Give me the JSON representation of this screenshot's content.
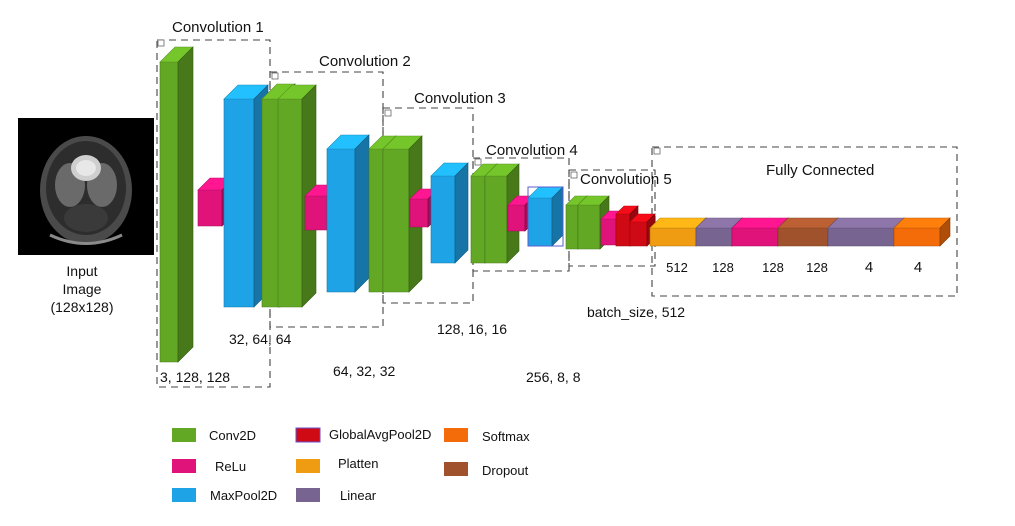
{
  "input": {
    "label_lines": [
      "Input",
      "Image",
      "(128x128)"
    ]
  },
  "groups": [
    {
      "id": "conv1",
      "title": "Convolution 1",
      "dims": "3, 128, 128"
    },
    {
      "id": "conv2",
      "title": "Convolution 2",
      "dims": "32, 64, 64"
    },
    {
      "id": "conv3",
      "title": "Convolution 3",
      "dims": "64, 32, 32"
    },
    {
      "id": "conv4",
      "title": "Convolution 4",
      "dims": "128, 16, 16"
    },
    {
      "id": "conv5",
      "title": "Convolution 5",
      "dims": "256, 8, 8"
    },
    {
      "id": "fc",
      "title": "Fully Connected",
      "dims": "batch_size, 512"
    }
  ],
  "fc_labels": [
    "512",
    "128",
    "128",
    "128",
    "4",
    "4"
  ],
  "colors": {
    "conv2d": "#63a824",
    "relu": "#e0137a",
    "maxpool2d": "#1ea3e6",
    "globalavgpool2d": "#d00a14",
    "flatten": "#ef9c12",
    "linear": "#786490",
    "softmax": "#f46c0a",
    "dropout": "#a0522d"
  },
  "legend": [
    {
      "key": "conv2d",
      "label": "Conv2D"
    },
    {
      "key": "relu",
      "label": "ReLu"
    },
    {
      "key": "maxpool2d",
      "label": "MaxPool2D"
    },
    {
      "key": "globalavgpool2d",
      "label": "GlobalAvgPool2D"
    },
    {
      "key": "flatten",
      "label": "Platten"
    },
    {
      "key": "linear",
      "label": "Linear"
    },
    {
      "key": "softmax",
      "label": "Softmax"
    },
    {
      "key": "dropout",
      "label": "Dropout"
    }
  ]
}
